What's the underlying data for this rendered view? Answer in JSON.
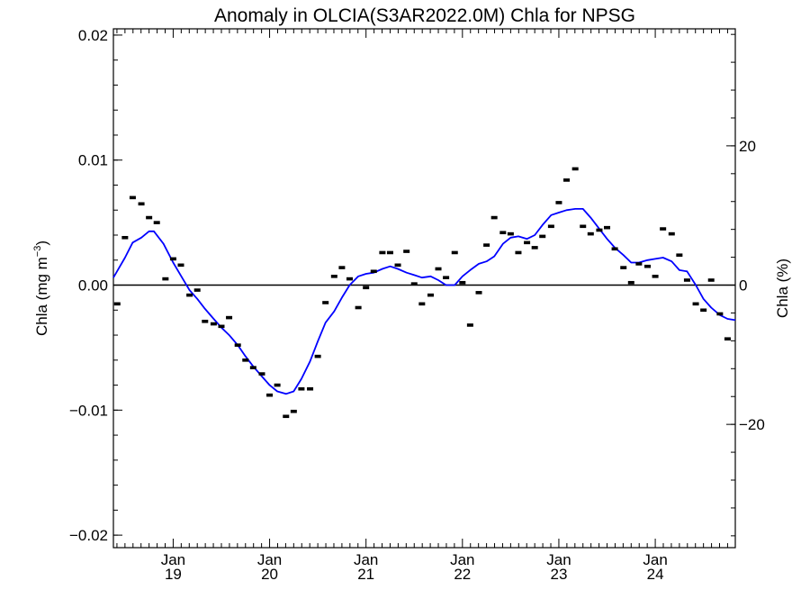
{
  "chart_data": {
    "type": "scatter",
    "title": "Anomaly in OLCIA(S3AR2022.0M) Chla for NPSG",
    "ylabel_left": "Chla (mg m",
    "ylabel_left_sup": "−3",
    "ylabel_left_close": ")",
    "ylabel_right": "Chla (%)",
    "xlim": [
      2018.38,
      2024.83
    ],
    "ylim_left": [
      -0.021,
      0.0205
    ],
    "ylim_right": [
      -37.7,
      36.8
    ],
    "y_ticks_left": [
      {
        "value": 0.02,
        "label": "0.02"
      },
      {
        "value": 0.01,
        "label": "0.01"
      },
      {
        "value": 0.0,
        "label": "0.00"
      },
      {
        "value": -0.01,
        "label": "−0.01"
      },
      {
        "value": -0.02,
        "label": "−0.02"
      }
    ],
    "y_ticks_right": [
      {
        "value": 20,
        "label": "20"
      },
      {
        "value": 0,
        "label": "0"
      },
      {
        "value": -20,
        "label": "−20"
      }
    ],
    "x_ticks": [
      {
        "value": 2019.0,
        "month": "Jan",
        "year": "19"
      },
      {
        "value": 2020.0,
        "month": "Jan",
        "year": "20"
      },
      {
        "value": 2021.0,
        "month": "Jan",
        "year": "21"
      },
      {
        "value": 2022.0,
        "month": "Jan",
        "year": "22"
      },
      {
        "value": 2023.0,
        "month": "Jan",
        "year": "23"
      },
      {
        "value": 2024.0,
        "month": "Jan",
        "year": "24"
      }
    ],
    "zero_line": 0.0,
    "series": [
      {
        "kind": "monthly_points",
        "color": "#000000",
        "points": [
          [
            2018.42,
            -0.0015
          ],
          [
            2018.5,
            0.0038
          ],
          [
            2018.58,
            0.007
          ],
          [
            2018.67,
            0.0065
          ],
          [
            2018.75,
            0.0054
          ],
          [
            2018.83,
            0.005
          ],
          [
            2018.92,
            0.0005
          ],
          [
            2019.0,
            0.0021
          ],
          [
            2019.08,
            0.0016
          ],
          [
            2019.17,
            -0.0008
          ],
          [
            2019.25,
            -0.0004
          ],
          [
            2019.33,
            -0.0029
          ],
          [
            2019.42,
            -0.0031
          ],
          [
            2019.5,
            -0.0033
          ],
          [
            2019.58,
            -0.0026
          ],
          [
            2019.67,
            -0.0048
          ],
          [
            2019.75,
            -0.006
          ],
          [
            2019.83,
            -0.0066
          ],
          [
            2019.92,
            -0.0071
          ],
          [
            2020.0,
            -0.0088
          ],
          [
            2020.08,
            -0.008
          ],
          [
            2020.17,
            -0.0105
          ],
          [
            2020.25,
            -0.0101
          ],
          [
            2020.33,
            -0.0083
          ],
          [
            2020.42,
            -0.0083
          ],
          [
            2020.5,
            -0.0057
          ],
          [
            2020.58,
            -0.0014
          ],
          [
            2020.67,
            0.0007
          ],
          [
            2020.75,
            0.0014
          ],
          [
            2020.83,
            0.0005
          ],
          [
            2020.92,
            -0.0018
          ],
          [
            2021.0,
            -0.0002
          ],
          [
            2021.08,
            0.0011
          ],
          [
            2021.17,
            0.0026
          ],
          [
            2021.25,
            0.0026
          ],
          [
            2021.33,
            0.0016
          ],
          [
            2021.42,
            0.0027
          ],
          [
            2021.5,
            0.0001
          ],
          [
            2021.58,
            -0.0015
          ],
          [
            2021.67,
            -0.0008
          ],
          [
            2021.75,
            0.0013
          ],
          [
            2021.83,
            0.0006
          ],
          [
            2021.92,
            0.0026
          ],
          [
            2022.0,
            0.0002
          ],
          [
            2022.08,
            -0.0032
          ],
          [
            2022.17,
            -0.0006
          ],
          [
            2022.25,
            0.0032
          ],
          [
            2022.33,
            0.0054
          ],
          [
            2022.42,
            0.0042
          ],
          [
            2022.5,
            0.0041
          ],
          [
            2022.58,
            0.0026
          ],
          [
            2022.67,
            0.0034
          ],
          [
            2022.75,
            0.003
          ],
          [
            2022.83,
            0.0039
          ],
          [
            2022.92,
            0.0047
          ],
          [
            2023.0,
            0.0066
          ],
          [
            2023.08,
            0.0084
          ],
          [
            2023.17,
            0.0093
          ],
          [
            2023.25,
            0.0047
          ],
          [
            2023.33,
            0.0041
          ],
          [
            2023.42,
            0.0044
          ],
          [
            2023.5,
            0.0046
          ],
          [
            2023.58,
            0.0029
          ],
          [
            2023.67,
            0.0014
          ],
          [
            2023.75,
            0.0002
          ],
          [
            2023.83,
            0.0017
          ],
          [
            2023.92,
            0.0015
          ],
          [
            2024.0,
            0.0007
          ],
          [
            2024.08,
            0.0045
          ],
          [
            2024.17,
            0.0041
          ],
          [
            2024.25,
            0.0024
          ],
          [
            2024.33,
            0.0004
          ],
          [
            2024.42,
            -0.0015
          ],
          [
            2024.5,
            -0.002
          ],
          [
            2024.58,
            0.0004
          ],
          [
            2024.67,
            -0.0023
          ],
          [
            2024.75,
            -0.0043
          ]
        ]
      },
      {
        "kind": "running_mean",
        "color": "#0000ff",
        "points": [
          [
            2018.38,
            0.0006
          ],
          [
            2018.5,
            0.0022
          ],
          [
            2018.58,
            0.0034
          ],
          [
            2018.67,
            0.0038
          ],
          [
            2018.75,
            0.0043
          ],
          [
            2018.8,
            0.0043
          ],
          [
            2018.9,
            0.0033
          ],
          [
            2019.0,
            0.0018
          ],
          [
            2019.1,
            0.0005
          ],
          [
            2019.17,
            -0.0004
          ],
          [
            2019.25,
            -0.0011
          ],
          [
            2019.33,
            -0.0019
          ],
          [
            2019.42,
            -0.0027
          ],
          [
            2019.5,
            -0.0034
          ],
          [
            2019.58,
            -0.004
          ],
          [
            2019.67,
            -0.0048
          ],
          [
            2019.75,
            -0.0057
          ],
          [
            2019.83,
            -0.0065
          ],
          [
            2019.92,
            -0.0073
          ],
          [
            2020.0,
            -0.008
          ],
          [
            2020.08,
            -0.0085
          ],
          [
            2020.17,
            -0.0087
          ],
          [
            2020.25,
            -0.0085
          ],
          [
            2020.33,
            -0.0075
          ],
          [
            2020.42,
            -0.0061
          ],
          [
            2020.5,
            -0.0045
          ],
          [
            2020.58,
            -0.003
          ],
          [
            2020.67,
            -0.0021
          ],
          [
            2020.75,
            -0.001
          ],
          [
            2020.83,
            0.0
          ],
          [
            2020.92,
            0.0007
          ],
          [
            2021.0,
            0.0009
          ],
          [
            2021.08,
            0.001
          ],
          [
            2021.17,
            0.0013
          ],
          [
            2021.25,
            0.0015
          ],
          [
            2021.33,
            0.0013
          ],
          [
            2021.42,
            0.001
          ],
          [
            2021.5,
            0.0008
          ],
          [
            2021.58,
            0.0006
          ],
          [
            2021.67,
            0.0007
          ],
          [
            2021.75,
            0.0004
          ],
          [
            2021.83,
            0.0
          ],
          [
            2021.92,
            0.0
          ],
          [
            2022.0,
            0.0007
          ],
          [
            2022.08,
            0.0012
          ],
          [
            2022.17,
            0.0017
          ],
          [
            2022.25,
            0.0019
          ],
          [
            2022.33,
            0.0023
          ],
          [
            2022.42,
            0.0033
          ],
          [
            2022.5,
            0.0038
          ],
          [
            2022.58,
            0.0039
          ],
          [
            2022.67,
            0.0037
          ],
          [
            2022.75,
            0.004
          ],
          [
            2022.83,
            0.0048
          ],
          [
            2022.92,
            0.0056
          ],
          [
            2023.0,
            0.0058
          ],
          [
            2023.08,
            0.006
          ],
          [
            2023.17,
            0.0061
          ],
          [
            2023.25,
            0.0061
          ],
          [
            2023.33,
            0.0054
          ],
          [
            2023.42,
            0.0045
          ],
          [
            2023.5,
            0.0037
          ],
          [
            2023.58,
            0.003
          ],
          [
            2023.67,
            0.0024
          ],
          [
            2023.75,
            0.0018
          ],
          [
            2023.83,
            0.0018
          ],
          [
            2023.92,
            0.002
          ],
          [
            2024.0,
            0.0021
          ],
          [
            2024.08,
            0.0022
          ],
          [
            2024.17,
            0.0019
          ],
          [
            2024.25,
            0.0012
          ],
          [
            2024.33,
            0.0011
          ],
          [
            2024.42,
            0.0
          ],
          [
            2024.5,
            -0.0011
          ],
          [
            2024.58,
            -0.0018
          ],
          [
            2024.67,
            -0.0024
          ],
          [
            2024.75,
            -0.0027
          ],
          [
            2024.83,
            -0.0028
          ]
        ]
      }
    ]
  }
}
